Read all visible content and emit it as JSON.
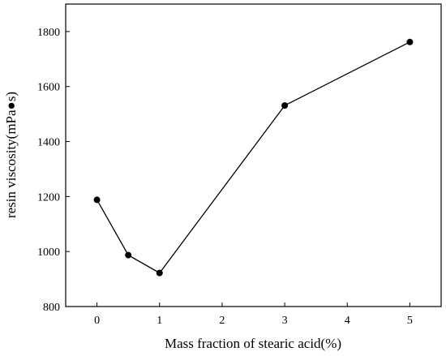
{
  "chart_data": {
    "type": "line",
    "title": "",
    "xlabel": "Mass fraction of stearic acid(%)",
    "ylabel": "resin viscosity(mPa●s)",
    "x": [
      0,
      0.5,
      1,
      3,
      5
    ],
    "series": [
      {
        "values": [
          1188,
          987,
          922,
          1531,
          1762
        ],
        "color": "#000000",
        "marker": "filled-circle"
      }
    ],
    "xlim": [
      -0.5,
      5.5
    ],
    "ylim": [
      800,
      1900
    ],
    "xticks": [
      0,
      1,
      2,
      3,
      4,
      5
    ],
    "xtick_labels": [
      "0",
      "1",
      "2",
      "3",
      "4",
      "5"
    ],
    "yticks": [
      800,
      1000,
      1200,
      1400,
      1600,
      1800
    ],
    "ytick_labels": [
      "800",
      "1000",
      "1200",
      "1400",
      "1600",
      "1800"
    ],
    "grid": false,
    "legend": "none"
  }
}
